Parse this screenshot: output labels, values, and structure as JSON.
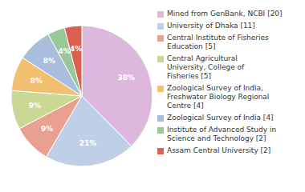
{
  "chart_data": {
    "type": "pie",
    "categories": [
      "Mined from GenBank, NCBI [20]",
      "University of Dhaka [11]",
      "Central Institute of Fisheries\nEducation [5]",
      "Central Agricultural\nUniversity, College of\nFisheries [5]",
      "Zoological Survey of India,\nFreshwater Biology Regional\nCentre [4]",
      "Zoological Survey of India [4]",
      "Institute of Advanced Study in\nScience and Technology [2]",
      "Assam Central University [2]"
    ],
    "values": [
      38,
      21,
      9,
      9,
      8,
      8,
      4,
      4
    ],
    "value_labels": [
      "38%",
      "21%",
      "9%",
      "9%",
      "8%",
      "8%",
      "4%",
      "4%"
    ],
    "data_labels": true,
    "colors": [
      "#ddb8dd",
      "#c0cfe8",
      "#e8a090",
      "#cad895",
      "#f0c070",
      "#a8bedc",
      "#98c898",
      "#d96050"
    ],
    "legend": "right"
  }
}
